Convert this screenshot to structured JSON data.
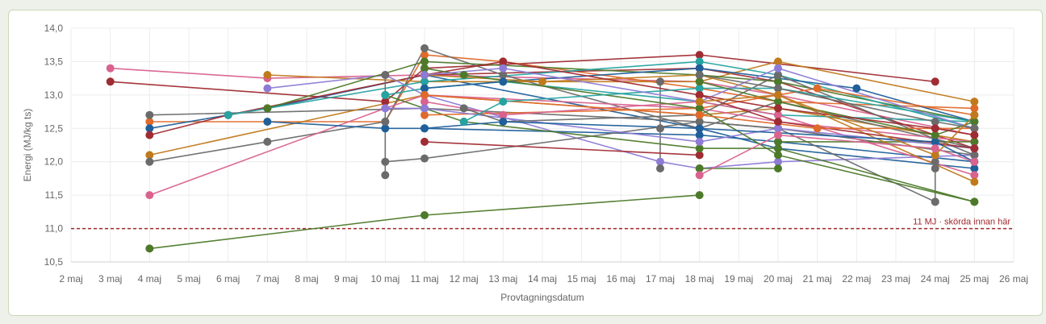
{
  "chart_data": {
    "type": "line",
    "xlabel": "Provtagningsdatum",
    "ylabel": "Energi (MJ/kg ts)",
    "x_ticks": [
      "2 maj",
      "3 maj",
      "4 maj",
      "5 maj",
      "6 maj",
      "7 maj",
      "8 maj",
      "9 maj",
      "10 maj",
      "11 maj",
      "12 maj",
      "13 maj",
      "14 maj",
      "15 maj",
      "16 maj",
      "17 maj",
      "18 maj",
      "19 maj",
      "20 maj",
      "21 maj",
      "22 maj",
      "23 maj",
      "24 maj",
      "25 maj",
      "26 maj"
    ],
    "y_ticks": [
      "10,5",
      "11,0",
      "11,5",
      "12,0",
      "12,5",
      "13,0",
      "13,5",
      "14,0"
    ],
    "xlim": [
      2,
      26
    ],
    "ylim": [
      10.5,
      14.0
    ],
    "grid": true,
    "reference_line": {
      "y": 11.0,
      "label": "11 MJ · skörda innan här",
      "color": "#a0282d"
    },
    "series": [
      {
        "color": "#d9628f",
        "points": [
          [
            3,
            13.4
          ],
          [
            7,
            13.25
          ],
          [
            11,
            13.3
          ],
          [
            18,
            13.2
          ],
          [
            20,
            13.0
          ],
          [
            25,
            12.4
          ]
        ]
      },
      {
        "color": "#a02c33",
        "points": [
          [
            3,
            13.2
          ],
          [
            10,
            12.9
          ],
          [
            11,
            13.4
          ],
          [
            18,
            13.6
          ],
          [
            24,
            13.2
          ]
        ]
      },
      {
        "color": "#e06a2a",
        "points": [
          [
            4,
            12.6
          ],
          [
            10,
            12.6
          ],
          [
            11,
            13.6
          ],
          [
            13,
            13.5
          ],
          [
            18,
            13.1
          ],
          [
            20,
            12.9
          ],
          [
            25,
            12.8
          ]
        ]
      },
      {
        "color": "#1f5f9a",
        "points": [
          [
            4,
            12.5
          ],
          [
            6,
            12.7
          ],
          [
            7,
            12.8
          ],
          [
            11,
            13.3
          ],
          [
            18,
            12.5
          ],
          [
            20,
            12.2
          ],
          [
            25,
            11.9
          ]
        ]
      },
      {
        "color": "#a02c33",
        "points": [
          [
            4,
            12.4
          ],
          [
            6,
            12.7
          ],
          [
            11,
            13.3
          ],
          [
            18,
            13.4
          ],
          [
            20,
            13.2
          ],
          [
            25,
            12.2
          ]
        ]
      },
      {
        "color": "#6b6b6b",
        "points": [
          [
            4,
            12.7
          ],
          [
            11,
            12.8
          ],
          [
            18,
            12.6
          ],
          [
            20,
            12.5
          ],
          [
            25,
            12.1
          ]
        ]
      },
      {
        "color": "#c07a1c",
        "points": [
          [
            4,
            12.1
          ],
          [
            11,
            13.0
          ],
          [
            18,
            12.7
          ],
          [
            20,
            12.8
          ],
          [
            25,
            12.3
          ]
        ]
      },
      {
        "color": "#6b6b6b",
        "points": [
          [
            4,
            12.0
          ],
          [
            7,
            12.3
          ],
          [
            10,
            12.6
          ],
          [
            11,
            13.7
          ],
          [
            13,
            13.3
          ],
          [
            18,
            12.5
          ],
          [
            20,
            12.9
          ],
          [
            25,
            12.2
          ]
        ]
      },
      {
        "color": "#d9628f",
        "points": [
          [
            4,
            11.5
          ],
          [
            10,
            12.8
          ],
          [
            11,
            13.0
          ],
          [
            18,
            12.8
          ],
          [
            20,
            12.6
          ],
          [
            25,
            12.3
          ]
        ]
      },
      {
        "color": "#4d7a2a",
        "points": [
          [
            4,
            10.7
          ],
          [
            11,
            11.2
          ],
          [
            18,
            11.5
          ]
        ]
      },
      {
        "color": "#c07a1c",
        "points": [
          [
            7,
            13.3
          ],
          [
            11,
            13.2
          ],
          [
            18,
            13.2
          ],
          [
            20,
            13.5
          ],
          [
            25,
            12.9
          ]
        ]
      },
      {
        "color": "#8e7bd6",
        "points": [
          [
            7,
            13.1
          ],
          [
            10,
            13.3
          ],
          [
            11,
            13.0
          ],
          [
            17,
            12.0
          ],
          [
            18,
            11.9
          ],
          [
            20,
            12.0
          ],
          [
            25,
            12.1
          ]
        ]
      },
      {
        "color": "#4d7a2a",
        "points": [
          [
            7,
            12.8
          ],
          [
            11,
            13.5
          ],
          [
            18,
            13.3
          ],
          [
            20,
            13.2
          ],
          [
            25,
            12.6
          ]
        ]
      },
      {
        "color": "#1f5f9a",
        "points": [
          [
            7,
            12.6
          ],
          [
            10,
            12.5
          ],
          [
            11,
            12.5
          ],
          [
            18,
            12.4
          ],
          [
            20,
            12.3
          ],
          [
            25,
            12.0
          ]
        ]
      },
      {
        "color": "#26a3a0",
        "points": [
          [
            6,
            12.7
          ],
          [
            11,
            13.2
          ],
          [
            18,
            13.5
          ],
          [
            20,
            13.3
          ],
          [
            25,
            12.5
          ]
        ]
      },
      {
        "color": "#6b6b6b",
        "points": [
          [
            10,
            13.3
          ],
          [
            10,
            12.6
          ],
          [
            10,
            11.8
          ]
        ]
      },
      {
        "color": "#6b6b6b",
        "points": [
          [
            10,
            12.0
          ],
          [
            11,
            12.05
          ],
          [
            18,
            12.6
          ],
          [
            20,
            12.5
          ],
          [
            24,
            11.4
          ]
        ]
      },
      {
        "color": "#6b6b6b",
        "points": [
          [
            17,
            13.2
          ],
          [
            17,
            12.5
          ],
          [
            17,
            11.9
          ]
        ]
      },
      {
        "color": "#6b6b6b",
        "points": [
          [
            24,
            12.0
          ],
          [
            24,
            11.9
          ],
          [
            24,
            11.4
          ]
        ]
      },
      {
        "color": "#a02c33",
        "points": [
          [
            11,
            12.3
          ],
          [
            18,
            12.1
          ]
        ]
      },
      {
        "color": "#4d7a2a",
        "points": [
          [
            10,
            13.0
          ],
          [
            11,
            12.8
          ],
          [
            12,
            12.6
          ],
          [
            18,
            12.2
          ],
          [
            20,
            12.2
          ],
          [
            25,
            11.4
          ]
        ]
      },
      {
        "color": "#4d7a2a",
        "points": [
          [
            18,
            11.9
          ],
          [
            20,
            11.9
          ],
          [
            20,
            12.3
          ],
          [
            25,
            12.3
          ]
        ]
      },
      {
        "color": "#26a3a0",
        "points": [
          [
            10,
            13.0
          ],
          [
            11,
            13.1
          ],
          [
            13,
            13.2
          ],
          [
            18,
            12.9
          ],
          [
            20,
            12.7
          ],
          [
            25,
            12.6
          ]
        ]
      },
      {
        "color": "#1f5f9a",
        "points": [
          [
            11,
            13.1
          ],
          [
            13,
            13.2
          ],
          [
            18,
            13.4
          ],
          [
            22,
            13.1
          ],
          [
            25,
            12.6
          ]
        ]
      },
      {
        "color": "#e06a2a",
        "points": [
          [
            11,
            12.7
          ],
          [
            18,
            12.8
          ],
          [
            21,
            13.1
          ],
          [
            25,
            12.7
          ]
        ]
      },
      {
        "color": "#d9628f",
        "points": [
          [
            11,
            12.9
          ],
          [
            13,
            12.7
          ],
          [
            18,
            12.9
          ],
          [
            20,
            12.7
          ],
          [
            25,
            11.8
          ]
        ]
      },
      {
        "color": "#c07a1c",
        "points": [
          [
            11,
            13.3
          ],
          [
            14,
            13.2
          ],
          [
            18,
            13.3
          ],
          [
            20,
            13.0
          ],
          [
            25,
            11.7
          ]
        ]
      },
      {
        "color": "#8e7bd6",
        "points": [
          [
            10,
            12.8
          ],
          [
            11,
            12.8
          ],
          [
            18,
            12.3
          ],
          [
            20,
            12.5
          ],
          [
            25,
            12.2
          ]
        ]
      },
      {
        "color": "#6b6b6b",
        "points": [
          [
            12,
            12.8
          ],
          [
            13,
            12.6
          ],
          [
            18,
            12.7
          ],
          [
            20,
            13.3
          ],
          [
            25,
            12.1
          ]
        ]
      },
      {
        "color": "#a02c33",
        "points": [
          [
            11,
            13.3
          ],
          [
            13,
            13.5
          ],
          [
            18,
            13.0
          ],
          [
            20,
            12.6
          ],
          [
            25,
            12.2
          ]
        ]
      },
      {
        "color": "#4d7a2a",
        "points": [
          [
            11,
            13.4
          ],
          [
            12,
            13.3
          ],
          [
            18,
            12.8
          ],
          [
            20,
            12.1
          ],
          [
            25,
            11.4
          ]
        ]
      },
      {
        "color": "#e06a2a",
        "points": [
          [
            11,
            13.0
          ],
          [
            18,
            12.7
          ],
          [
            21,
            12.5
          ],
          [
            25,
            12.5
          ]
        ]
      },
      {
        "color": "#26a3a0",
        "points": [
          [
            12,
            12.6
          ],
          [
            13,
            12.9
          ],
          [
            18,
            13.1
          ],
          [
            20,
            13.1
          ],
          [
            25,
            12.6
          ]
        ]
      },
      {
        "color": "#1f5f9a",
        "points": [
          [
            11,
            12.5
          ],
          [
            13,
            12.6
          ],
          [
            18,
            12.5
          ],
          [
            24,
            12.3
          ],
          [
            25,
            12.0
          ]
        ]
      },
      {
        "color": "#8e7bd6",
        "points": [
          [
            11,
            13.3
          ],
          [
            13,
            13.4
          ],
          [
            18,
            12.9
          ],
          [
            20,
            13.4
          ],
          [
            25,
            12.5
          ]
        ]
      },
      {
        "color": "#4d7a2a",
        "points": [
          [
            18,
            13.2
          ],
          [
            20,
            12.9
          ],
          [
            24,
            12.4
          ],
          [
            25,
            12.6
          ]
        ]
      },
      {
        "color": "#6b6b6b",
        "points": [
          [
            18,
            13.3
          ],
          [
            20,
            13.1
          ],
          [
            24,
            12.6
          ],
          [
            25,
            12.5
          ]
        ]
      },
      {
        "color": "#a02c33",
        "points": [
          [
            18,
            13.0
          ],
          [
            20,
            12.8
          ],
          [
            24,
            12.5
          ],
          [
            25,
            12.4
          ]
        ]
      },
      {
        "color": "#c07a1c",
        "points": [
          [
            18,
            12.9
          ],
          [
            20,
            13.0
          ],
          [
            24,
            12.1
          ],
          [
            25,
            12.7
          ]
        ]
      },
      {
        "color": "#d9628f",
        "points": [
          [
            18,
            11.8
          ],
          [
            20,
            12.4
          ],
          [
            24,
            12.2
          ],
          [
            25,
            12.0
          ]
        ]
      }
    ]
  }
}
